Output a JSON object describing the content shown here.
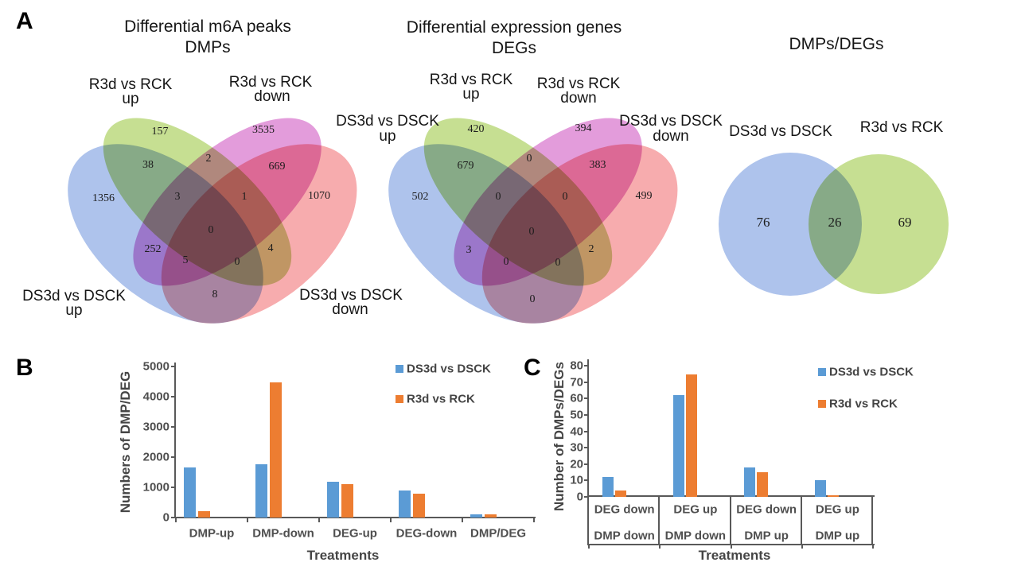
{
  "panels": {
    "a": "A",
    "b": "B",
    "c": "C"
  },
  "colors": {
    "venn_blue": "#AEC3EC",
    "venn_green": "#C6DF92",
    "venn_magenta": "#E39CDB",
    "venn_red": "#F7ACAE",
    "bar_blue": "#5B9BD5",
    "bar_orange": "#ED7D31",
    "axis_gray": "#595959"
  },
  "chart_data": [
    {
      "id": "venn_dmps",
      "type": "venn4",
      "title": "Differential m6A peaks",
      "subtitle": "DMPs",
      "sets": [
        {
          "name": "DS3d vs DSCK up",
          "label_line1": "DS3d vs DSCK",
          "label_line2": "up",
          "color": "#AEC3EC"
        },
        {
          "name": "R3d vs RCK up",
          "label_line1": "R3d vs RCK",
          "label_line2": "up",
          "color": "#C6DF92"
        },
        {
          "name": "R3d vs RCK down",
          "label_line1": "R3d vs RCK",
          "label_line2": "down",
          "color": "#E39CDB"
        },
        {
          "name": "DS3d vs DSCK down",
          "label_line1": "DS3d vs DSCK",
          "label_line2": "down",
          "color": "#F7ACAE"
        }
      ],
      "regions": [
        {
          "id": "R3d_up only",
          "value": 157
        },
        {
          "id": "R3d_down only",
          "value": 3535
        },
        {
          "id": "DS3d_up & R3d_up",
          "value": 38
        },
        {
          "id": "R3d_up & R3d_down",
          "value": 2
        },
        {
          "id": "R3d_down & DS3d_down",
          "value": 669
        },
        {
          "id": "DS3d_up only",
          "value": 1356
        },
        {
          "id": "DS3d_up & R3d_up & R3d_down",
          "value": 3
        },
        {
          "id": "R3d_up & R3d_down & DS3d_down",
          "value": 1
        },
        {
          "id": "DS3d_down only",
          "value": 1070
        },
        {
          "id": "DS3d_up & R3d_up & R3d_down & DS3d_down",
          "value": 0
        },
        {
          "id": "DS3d_up & R3d_down",
          "value": 252
        },
        {
          "id": "R3d_up & DS3d_down",
          "value": 4
        },
        {
          "id": "DS3d_up & R3d_down & DS3d_down",
          "value": 5
        },
        {
          "id": "DS3d_up & R3d_up & DS3d_down",
          "value": 0
        },
        {
          "id": "DS3d_up & DS3d_down",
          "value": 8
        }
      ]
    },
    {
      "id": "venn_degs",
      "type": "venn4",
      "title": "Differential expression genes",
      "subtitle": "DEGs",
      "sets": [
        {
          "name": "DS3d vs DSCK up",
          "label_line1": "DS3d vs DSCK",
          "label_line2": "up",
          "color": "#AEC3EC"
        },
        {
          "name": "R3d vs RCK up",
          "label_line1": "R3d vs RCK",
          "label_line2": "up",
          "color": "#C6DF92"
        },
        {
          "name": "R3d vs RCK down",
          "label_line1": "R3d vs RCK",
          "label_line2": "down",
          "color": "#E39CDB"
        },
        {
          "name": "DS3d vs DSCK down",
          "label_line1": "DS3d vs DSCK",
          "label_line2": "down",
          "color": "#F7ACAE"
        }
      ],
      "regions": [
        {
          "id": "R3d_up only",
          "value": 420
        },
        {
          "id": "R3d_down only",
          "value": 394
        },
        {
          "id": "DS3d_up & R3d_up",
          "value": 679
        },
        {
          "id": "R3d_up & R3d_down",
          "value": 0
        },
        {
          "id": "R3d_down & DS3d_down",
          "value": 383
        },
        {
          "id": "DS3d_up only",
          "value": 502
        },
        {
          "id": "DS3d_up & R3d_up & R3d_down",
          "value": 0
        },
        {
          "id": "R3d_up & R3d_down & DS3d_down",
          "value": 0
        },
        {
          "id": "DS3d_down only",
          "value": 499
        },
        {
          "id": "DS3d_up & R3d_up & R3d_down & DS3d_down",
          "value": 0
        },
        {
          "id": "DS3d_up & R3d_down",
          "value": 3
        },
        {
          "id": "R3d_up & DS3d_down",
          "value": 2
        },
        {
          "id": "DS3d_up & R3d_down & DS3d_down",
          "value": 0
        },
        {
          "id": "DS3d_up & R3d_up & DS3d_down",
          "value": 0
        },
        {
          "id": "DS3d_up & DS3d_down",
          "value": 0
        }
      ]
    },
    {
      "id": "venn_overlap",
      "type": "venn2",
      "title": "DMPs/DEGs",
      "sets": [
        {
          "name": "DS3d vs DSCK",
          "color": "#AEC3EC"
        },
        {
          "name": "R3d vs RCK",
          "color": "#C6DF92"
        }
      ],
      "regions": [
        {
          "id": "DS3d only",
          "value": 76
        },
        {
          "id": "DS3d & R3d",
          "value": 26
        },
        {
          "id": "R3d only",
          "value": 69
        }
      ]
    },
    {
      "id": "bar_b",
      "type": "bar",
      "panel": "B",
      "xlabel": "Treatments",
      "ylabel": "Numbers of DMP/DEG",
      "categories": [
        "DMP-up",
        "DMP-down",
        "DEG-up",
        "DEG-down",
        "DMP/DEG"
      ],
      "yticks": [
        0,
        1000,
        2000,
        3000,
        4000,
        5000
      ],
      "ylim": [
        0,
        5000
      ],
      "grid": false,
      "legend_position": "top-right",
      "series": [
        {
          "name": "DS3d vs DSCK",
          "color": "#5B9BD5",
          "values": [
            1662,
            1757,
            1184,
            884,
            102
          ]
        },
        {
          "name": "R3d vs RCK",
          "color": "#ED7D31",
          "values": [
            205,
            4467,
            1101,
            780,
            95
          ]
        }
      ]
    },
    {
      "id": "bar_c",
      "type": "bar",
      "panel": "C",
      "xlabel": "Treatments",
      "ylabel": "Number of DMPs/DEGs",
      "categories": [
        {
          "line1": "DEG down",
          "line2": "DMP down"
        },
        {
          "line1": "DEG up",
          "line2": "DMP down"
        },
        {
          "line1": "DEG down",
          "line2": "DMP up"
        },
        {
          "line1": "DEG up",
          "line2": "DMP up"
        }
      ],
      "yticks": [
        0,
        10,
        20,
        30,
        40,
        50,
        60,
        70,
        80
      ],
      "ylim": [
        0,
        80
      ],
      "grid": false,
      "legend_position": "top-right",
      "series": [
        {
          "name": "DS3d vs DSCK",
          "color": "#5B9BD5",
          "values": [
            12,
            62,
            18,
            10
          ]
        },
        {
          "name": "R3d vs RCK",
          "color": "#ED7D31",
          "values": [
            4,
            75,
            15,
            1
          ]
        }
      ]
    }
  ]
}
